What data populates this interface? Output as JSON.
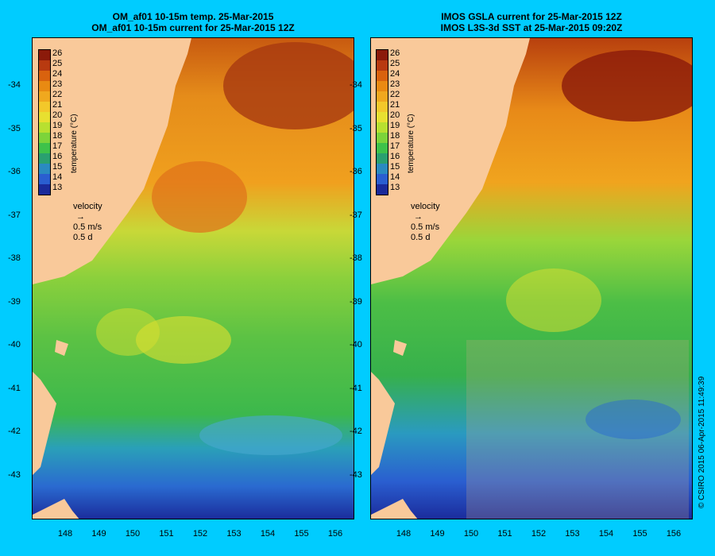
{
  "left_panel": {
    "title_line1": "OM_af01 10-15m temp. 25-Mar-2015",
    "title_line2": "OM_af01 10-15m current for 25-Mar-2015 12Z"
  },
  "right_panel": {
    "title_line1": "IMOS GSLA current for 25-Mar-2015 12Z",
    "title_line2": "IMOS L3S-3d SST at 25-Mar-2015 09:20Z"
  },
  "lat_labels": [
    "-34",
    "-35",
    "-36",
    "-37",
    "-38",
    "-39",
    "-40",
    "-41",
    "-42",
    "-43"
  ],
  "lon_labels": [
    "148",
    "149",
    "150",
    "151",
    "152",
    "153",
    "154",
    "155",
    "156"
  ],
  "colorbar": {
    "ticks": [
      "26",
      "25",
      "24",
      "23",
      "22",
      "21",
      "20",
      "19",
      "18",
      "17",
      "16",
      "15",
      "14",
      "13"
    ],
    "colors": [
      "#8b1a0a",
      "#b83a10",
      "#d9620e",
      "#e98a12",
      "#f0a81e",
      "#f3c82a",
      "#e8e030",
      "#b8e030",
      "#7cd43a",
      "#3ec24a",
      "#2aa070",
      "#2a8ac0",
      "#2a5ed0",
      "#1a2a9a"
    ],
    "label": "temperature (°C)"
  },
  "velocity_key": {
    "label": "velocity",
    "speed": "0.5 m/s",
    "duration": "0.5 d"
  },
  "credit": "© CSIRO 2015   06-Apr-2015 11:49:39"
}
